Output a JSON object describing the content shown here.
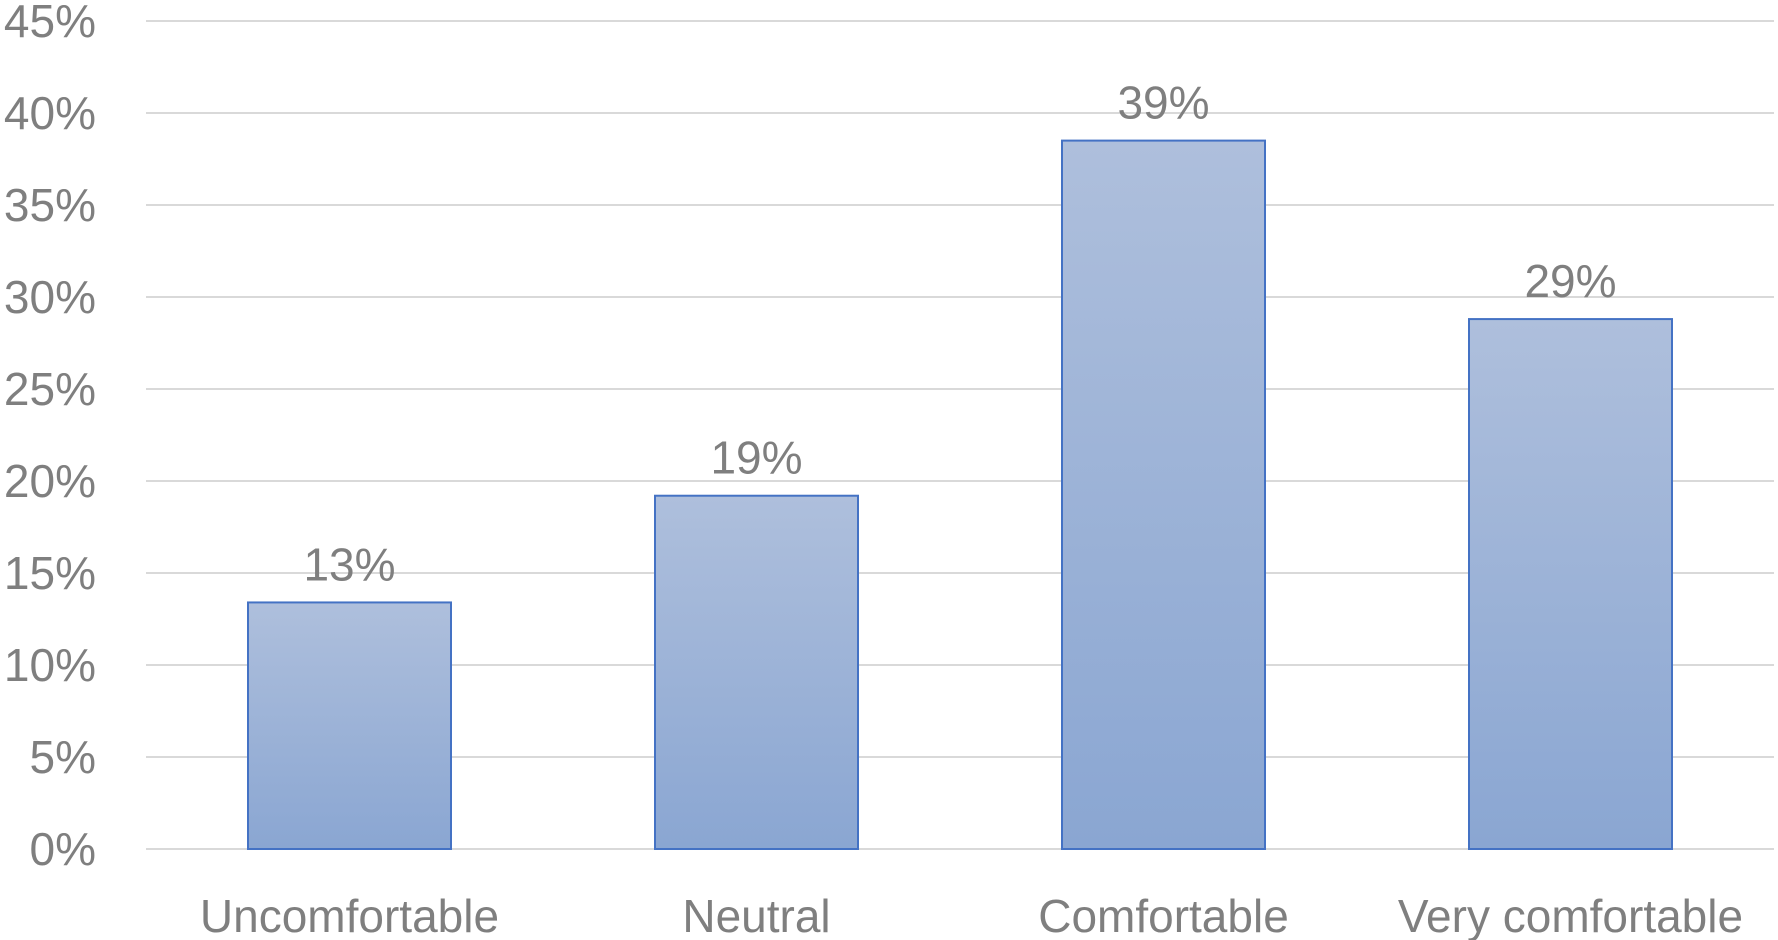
{
  "chart_data": {
    "type": "bar",
    "categories": [
      "Uncomfortable",
      "Neutral",
      "Comfortable",
      "Very comfortable"
    ],
    "values": [
      13.4,
      19.2,
      38.5,
      28.8
    ],
    "data_labels": [
      "13%",
      "19%",
      "39%",
      "29%"
    ],
    "y_ticks": [
      0,
      5,
      10,
      15,
      20,
      25,
      30,
      35,
      40,
      45
    ],
    "y_tick_labels": [
      "0%",
      "5%",
      "10%",
      "15%",
      "20%",
      "25%",
      "30%",
      "35%",
      "40%",
      "45%"
    ],
    "ylim": [
      0,
      45
    ],
    "title": "",
    "xlabel": "",
    "ylabel": "",
    "grid": true,
    "legend": "none",
    "colors": {
      "bar_fill_top": "#aebfdc",
      "bar_fill_bottom": "#8aa6d2",
      "bar_stroke": "#4472c4",
      "gridline": "#d9d9d9",
      "text": "#7f7f7f"
    }
  }
}
